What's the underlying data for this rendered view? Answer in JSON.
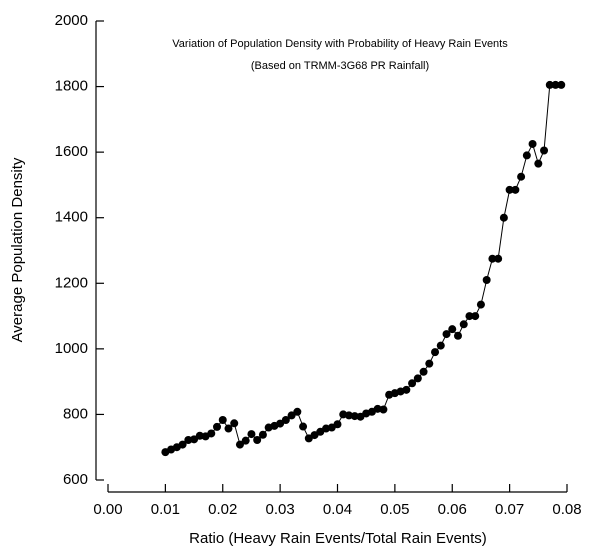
{
  "chart_data": {
    "type": "line",
    "title": "Variation of Population Density with Probability of Heavy Rain Events",
    "subtitle": "(Based on TRMM-3G68 PR Rainfall)",
    "x_label": "Ratio (Heavy Rain Events/Total Rain Events)",
    "y_label": "Average Population Density",
    "x": [
      0.01,
      0.011,
      0.012,
      0.013,
      0.014,
      0.015,
      0.016,
      0.017,
      0.018,
      0.019,
      0.02,
      0.021,
      0.022,
      0.023,
      0.024,
      0.025,
      0.026,
      0.027,
      0.028,
      0.029,
      0.03,
      0.031,
      0.032,
      0.033,
      0.034,
      0.035,
      0.036,
      0.037,
      0.038,
      0.039,
      0.04,
      0.041,
      0.042,
      0.043,
      0.044,
      0.045,
      0.046,
      0.047,
      0.048,
      0.049,
      0.05,
      0.051,
      0.052,
      0.053,
      0.054,
      0.055,
      0.056,
      0.057,
      0.058,
      0.059,
      0.06,
      0.061,
      0.062,
      0.063,
      0.064,
      0.065,
      0.066,
      0.067,
      0.068,
      0.069,
      0.07,
      0.071,
      0.072,
      0.073,
      0.074,
      0.075,
      0.076,
      0.077,
      0.078,
      0.079
    ],
    "values": [
      685,
      693,
      700,
      708,
      722,
      724,
      735,
      733,
      742,
      762,
      783,
      757,
      773,
      708,
      720,
      740,
      722,
      738,
      760,
      765,
      772,
      783,
      797,
      808,
      763,
      727,
      737,
      747,
      757,
      760,
      770,
      800,
      797,
      795,
      793,
      803,
      808,
      817,
      815,
      860,
      865,
      870,
      875,
      895,
      910,
      930,
      955,
      990,
      1010,
      1045,
      1060,
      1040,
      1075,
      1100,
      1100,
      1135,
      1210,
      1275,
      1275,
      1400,
      1485,
      1485,
      1525,
      1590,
      1625,
      1565,
      1605,
      1805,
      1805,
      1805
    ],
    "color": "#000000",
    "xlim": [
      0,
      0.08
    ],
    "xticks": [
      {
        "value": 0,
        "label": "0.00"
      },
      0.01,
      0.02,
      0.03,
      0.04,
      0.05,
      0.06,
      0.07,
      0.08
    ],
    "ylim": [
      600,
      2000
    ],
    "yticks": [
      600,
      800,
      1000,
      1200,
      1400,
      1600,
      1800,
      2000
    ]
  }
}
